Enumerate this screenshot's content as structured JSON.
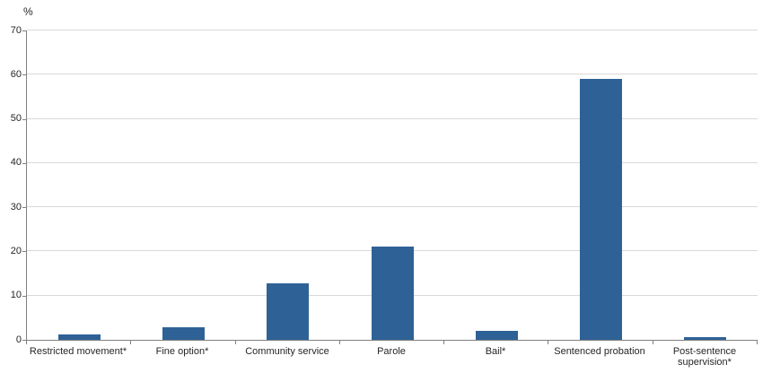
{
  "chart_data": {
    "type": "bar",
    "title": "",
    "xlabel": "",
    "ylabel": "%",
    "categories": [
      "Restricted movement*",
      "Fine option*",
      "Community service",
      "Parole",
      "Bail*",
      "Sentenced probation",
      "Post-sentence supervision*"
    ],
    "values": [
      1.3,
      2.8,
      12.8,
      21.2,
      2.0,
      59.0,
      0.7
    ],
    "ylim": [
      0,
      70
    ],
    "ytick_step": 10,
    "grid": true,
    "legend_position": "none",
    "bar_color": "#2E6296",
    "gridline_color": "#D9D9D9",
    "axis_color": "#808080",
    "text_color": "#262626"
  }
}
